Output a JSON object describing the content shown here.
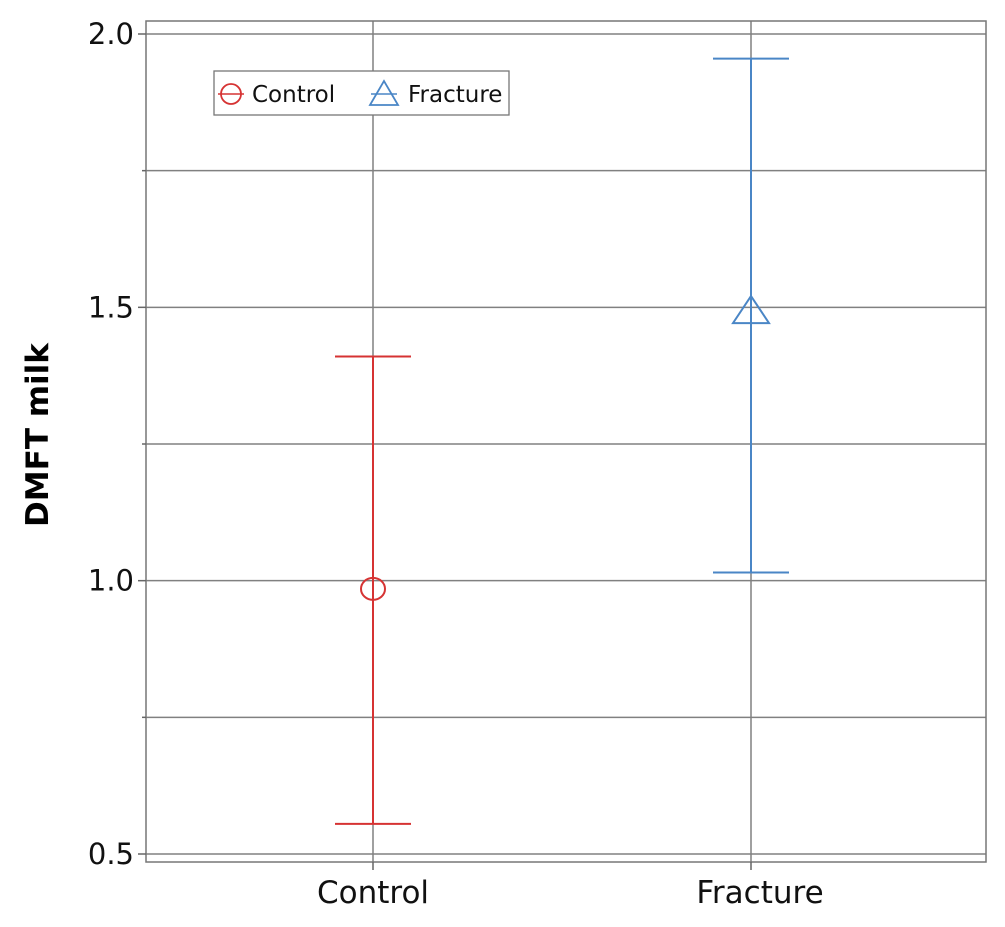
{
  "chart_data": {
    "type": "errorbar",
    "title": "",
    "xlabel": "",
    "ylabel": "DMFT milk",
    "categories": [
      "Control",
      "Fracture"
    ],
    "ylim": [
      0.5,
      2.0
    ],
    "yticks": [
      {
        "value": 0.5,
        "label": "0.5"
      },
      {
        "value": 1.0,
        "label": "1.0"
      },
      {
        "value": 1.5,
        "label": "1.5"
      },
      {
        "value": 2.0,
        "label": "2.0"
      }
    ],
    "minor_gridlines": [
      0.75,
      1.25,
      1.75
    ],
    "grid": true,
    "legend": {
      "position": "top-left"
    },
    "series": [
      {
        "name": "Control",
        "category": "Control",
        "mean": 0.985,
        "lower": 0.555,
        "upper": 1.41,
        "marker": "circle",
        "color": "#d63333"
      },
      {
        "name": "Fracture",
        "category": "Fracture",
        "mean": 1.495,
        "lower": 1.015,
        "upper": 1.955,
        "marker": "triangle",
        "color": "#4a86c6"
      }
    ]
  }
}
